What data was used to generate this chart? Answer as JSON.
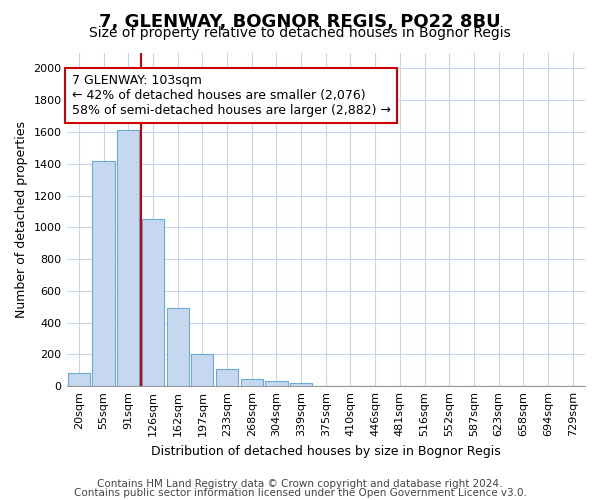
{
  "title": "7, GLENWAY, BOGNOR REGIS, PO22 8BU",
  "subtitle": "Size of property relative to detached houses in Bognor Regis",
  "xlabel": "Distribution of detached houses by size in Bognor Regis",
  "ylabel": "Number of detached properties",
  "categories": [
    "20sqm",
    "55sqm",
    "91sqm",
    "126sqm",
    "162sqm",
    "197sqm",
    "233sqm",
    "268sqm",
    "304sqm",
    "339sqm",
    "375sqm",
    "410sqm",
    "446sqm",
    "481sqm",
    "516sqm",
    "552sqm",
    "587sqm",
    "623sqm",
    "658sqm",
    "694sqm",
    "729sqm"
  ],
  "values": [
    80,
    1420,
    1610,
    1050,
    490,
    205,
    105,
    48,
    35,
    22,
    0,
    0,
    0,
    0,
    0,
    0,
    0,
    0,
    0,
    0,
    0
  ],
  "bar_color": "#c5d8f0",
  "bar_edge_color": "#6aaad4",
  "vline_color": "#cc0000",
  "vline_x_idx": 2,
  "ylim": [
    0,
    2100
  ],
  "yticks": [
    0,
    200,
    400,
    600,
    800,
    1000,
    1200,
    1400,
    1600,
    1800,
    2000
  ],
  "annotation_text_line1": "7 GLENWAY: 103sqm",
  "annotation_text_line2": "← 42% of detached houses are smaller (2,076)",
  "annotation_text_line3": "58% of semi-detached houses are larger (2,882) →",
  "annotation_box_facecolor": "#ffffff",
  "annotation_box_edgecolor": "#cc0000",
  "footer_line1": "Contains HM Land Registry data © Crown copyright and database right 2024.",
  "footer_line2": "Contains public sector information licensed under the Open Government Licence v3.0.",
  "background_color": "#ffffff",
  "plot_background": "#ffffff",
  "grid_color": "#c8d4e8",
  "title_fontsize": 13,
  "subtitle_fontsize": 10,
  "axis_label_fontsize": 9,
  "tick_fontsize": 8,
  "annotation_fontsize": 9,
  "footer_fontsize": 7.5
}
